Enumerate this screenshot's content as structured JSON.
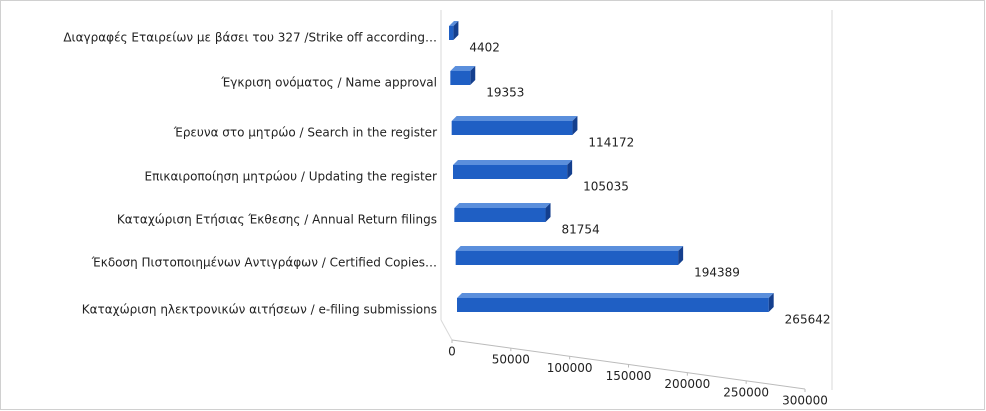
{
  "chart_data": {
    "type": "bar3d",
    "categories": [
      "Διαγραφές Εταιρείων  με  βάσει του 327 /Strike off according…",
      "Έγκριση ονόματος / Name approval",
      "Έρευνα στο μητρώο / Search in the register",
      "Επικαιροποίηση μητρώου / Updating the register",
      "Καταχώριση Ετήσιας Έκθεσης / Annual Return filings",
      "Έκδοση Πιστοποιημένων Αντιγράφων / Certified Copies…",
      "Καταχώριση ηλεκτρονικών αιτήσεων / e-filing submissions"
    ],
    "values": [
      4402,
      19353,
      114172,
      105035,
      81754,
      194389,
      265642
    ],
    "color": "#1f5fc4",
    "xlim": [
      0,
      300000
    ],
    "xticks": [
      0,
      50000,
      100000,
      150000,
      200000,
      250000,
      300000
    ]
  }
}
